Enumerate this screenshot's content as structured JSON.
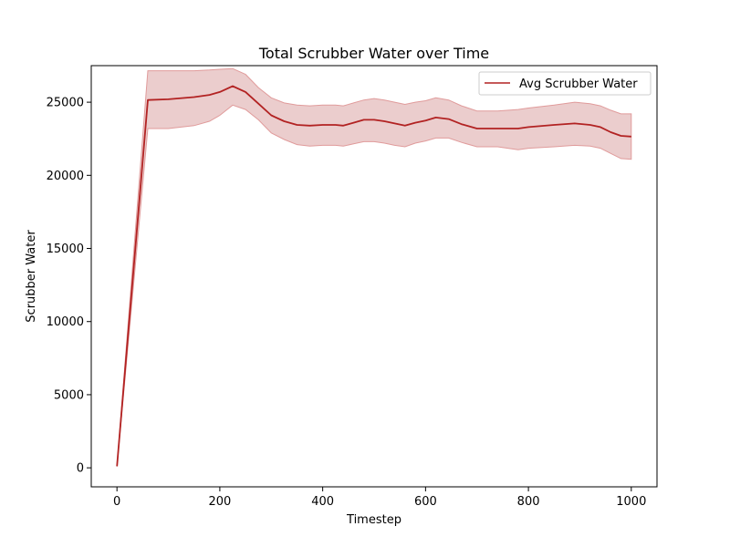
{
  "chart_data": {
    "type": "line",
    "title": "Total Scrubber Water over Time",
    "xlabel": "Timestep",
    "ylabel": "Scrubber Water",
    "xlim": [
      -50,
      1050
    ],
    "ylim": [
      -1300,
      27500
    ],
    "xticks": [
      0,
      200,
      400,
      600,
      800,
      1000
    ],
    "yticks": [
      0,
      5000,
      10000,
      15000,
      20000,
      25000
    ],
    "grid": false,
    "legend": {
      "position": "top-right"
    },
    "colors": {
      "line": "#b22222",
      "band": "#e8c4c4",
      "band_edge": "#e09b9b"
    },
    "series": [
      {
        "name": "Avg Scrubber Water",
        "x": [
          0,
          60,
          100,
          150,
          180,
          200,
          225,
          250,
          275,
          300,
          325,
          350,
          375,
          400,
          425,
          440,
          460,
          480,
          500,
          520,
          540,
          560,
          580,
          600,
          620,
          645,
          670,
          700,
          740,
          780,
          800,
          850,
          890,
          920,
          940,
          960,
          980,
          1000
        ],
        "y": [
          100,
          25150,
          25200,
          25350,
          25500,
          25700,
          26100,
          25700,
          24900,
          24100,
          23700,
          23450,
          23400,
          23450,
          23450,
          23400,
          23600,
          23800,
          23800,
          23700,
          23550,
          23400,
          23600,
          23750,
          23950,
          23850,
          23500,
          23200,
          23200,
          23200,
          23300,
          23450,
          23550,
          23450,
          23300,
          22950,
          22700,
          22650
        ],
        "upper": [
          100,
          27150,
          27150,
          27150,
          27200,
          27250,
          27300,
          26900,
          26000,
          25300,
          24950,
          24800,
          24750,
          24800,
          24800,
          24750,
          24950,
          25150,
          25250,
          25150,
          25000,
          24850,
          25000,
          25100,
          25300,
          25150,
          24750,
          24400,
          24400,
          24500,
          24600,
          24800,
          25000,
          24900,
          24750,
          24450,
          24200,
          24200
        ],
        "lower": [
          100,
          23200,
          23200,
          23400,
          23700,
          24100,
          24800,
          24500,
          23800,
          22900,
          22450,
          22100,
          22000,
          22050,
          22050,
          22000,
          22150,
          22300,
          22300,
          22200,
          22050,
          21950,
          22200,
          22350,
          22550,
          22550,
          22250,
          21950,
          21950,
          21750,
          21850,
          21950,
          22050,
          22000,
          21850,
          21500,
          21150,
          21100
        ]
      }
    ]
  }
}
